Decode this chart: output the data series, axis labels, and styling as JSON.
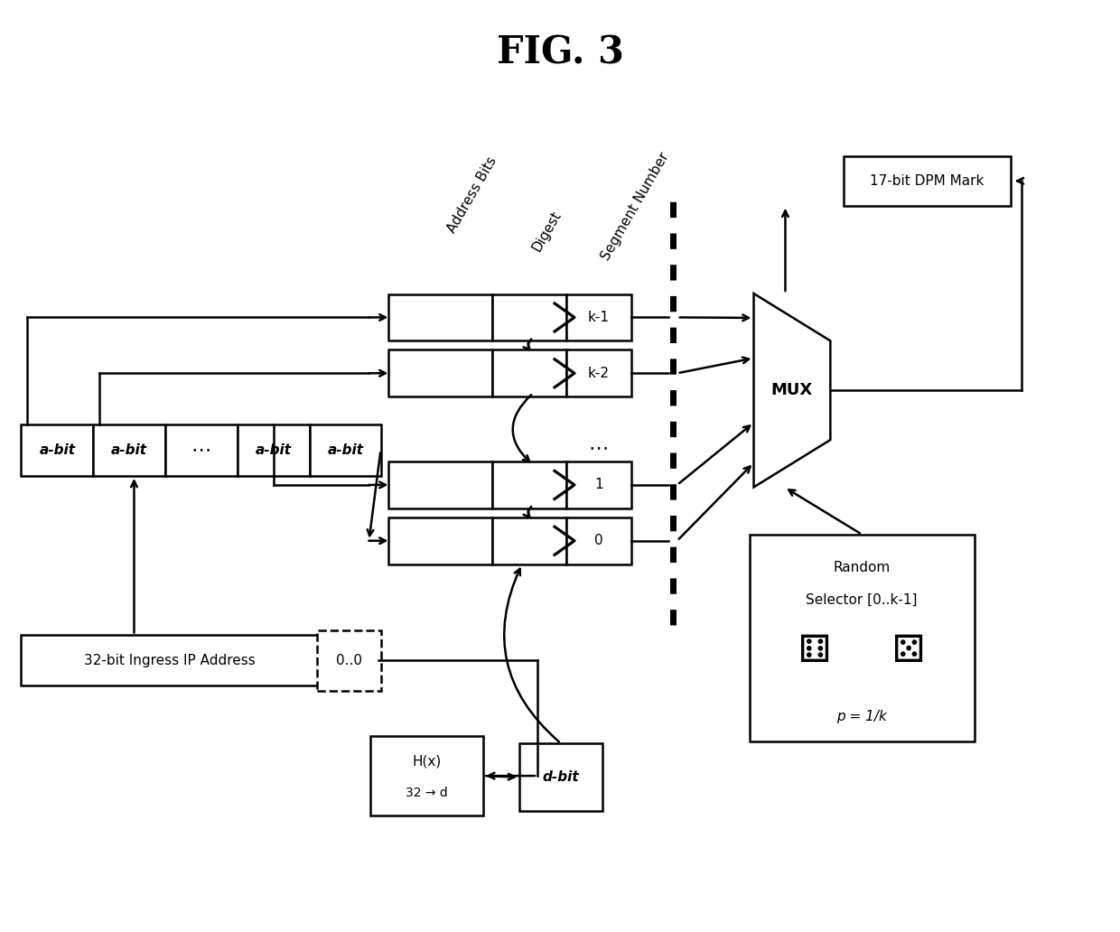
{
  "title": "FIG. 3",
  "bg_color": "#ffffff",
  "title_fontsize": 30,
  "figsize": [
    12.4,
    10.32
  ],
  "dpi": 100,
  "segments": [
    "k-1",
    "k-2",
    "1",
    "0"
  ],
  "box_label_32bit": "32-bit Ingress IP Address",
  "box_label_mux": "MUX",
  "box_label_17bit": "17-bit DPM Mark",
  "box_label_random1": "Random",
  "box_label_random2": "Selector [0..k-1]",
  "box_label_prob": "p = 1/k",
  "lw": 1.8
}
